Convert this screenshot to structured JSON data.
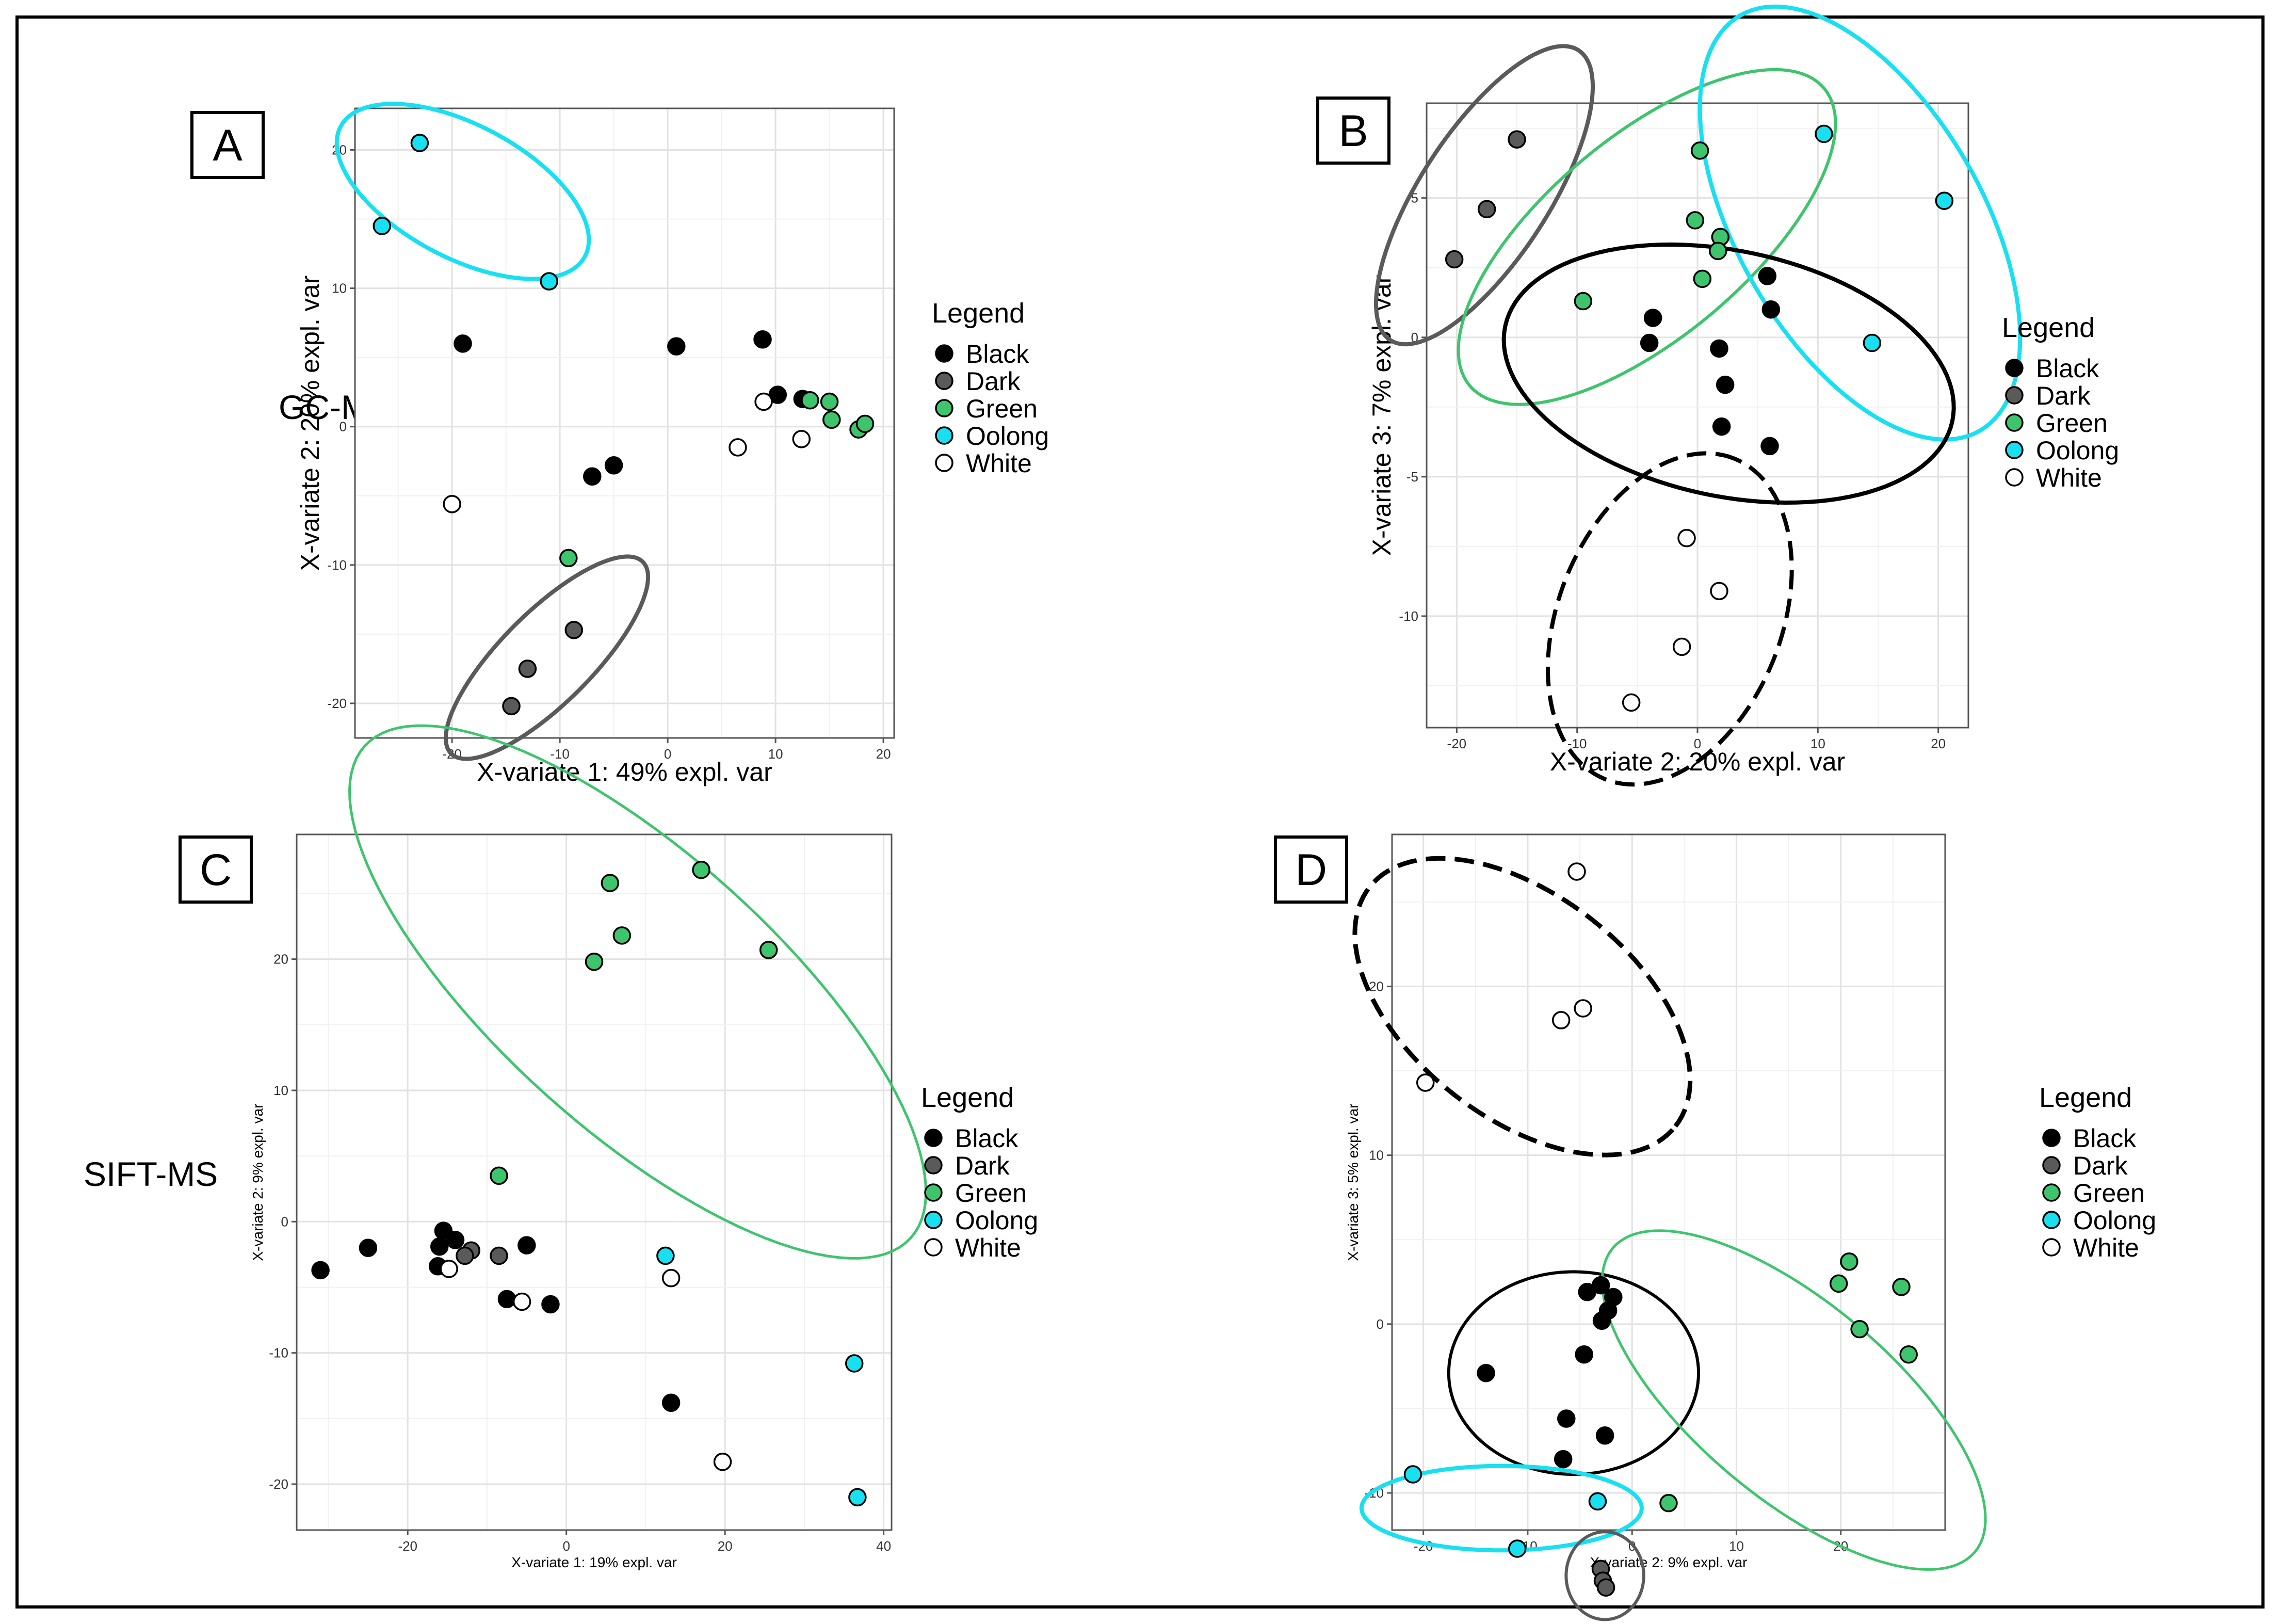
{
  "technique_labels": {
    "top": "GC-MS",
    "bottom": "SIFT-MS"
  },
  "legend": {
    "title": "Legend",
    "items": [
      {
        "label": "Black",
        "color": "#000000"
      },
      {
        "label": "Dark",
        "color": "#5a5a5a"
      },
      {
        "label": "Green",
        "color": "#3ec46d"
      },
      {
        "label": "Oolong",
        "color": "#18e0f0"
      },
      {
        "label": "White",
        "color": "#ffffff"
      }
    ]
  },
  "chart_data": [
    {
      "panel": "A",
      "type": "scatter",
      "xlabel": "X-variate 1: 49% expl. var",
      "ylabel": "X-variate 2: 20% expl. var",
      "xlim": [
        -29,
        21
      ],
      "ylim": [
        -22.5,
        23
      ],
      "xticks": [
        -20,
        -10,
        0,
        10,
        20
      ],
      "yticks": [
        -20,
        -10,
        0,
        10,
        20
      ],
      "grid": true,
      "legend_position": "right",
      "series": [
        {
          "name": "Black",
          "points": [
            [
              -19,
              6
            ],
            [
              0.8,
              5.8
            ],
            [
              8.8,
              6.3
            ],
            [
              10.2,
              2.3
            ],
            [
              12.5,
              2
            ],
            [
              -7,
              -3.6
            ],
            [
              -5,
              -2.8
            ]
          ]
        },
        {
          "name": "Dark",
          "points": [
            [
              -8.7,
              -14.7
            ],
            [
              -13,
              -17.5
            ],
            [
              -14.5,
              -20.2
            ]
          ]
        },
        {
          "name": "Green",
          "points": [
            [
              13.2,
              1.9
            ],
            [
              15,
              1.8
            ],
            [
              15.2,
              0.5
            ],
            [
              17.7,
              -0.2
            ],
            [
              18.3,
              0.2
            ],
            [
              -9.2,
              -9.5
            ]
          ]
        },
        {
          "name": "Oolong",
          "points": [
            [
              -23,
              20.5
            ],
            [
              -26.5,
              14.5
            ],
            [
              -11,
              10.5
            ]
          ]
        },
        {
          "name": "White",
          "points": [
            [
              8.9,
              1.8
            ],
            [
              6.5,
              -1.5
            ],
            [
              12.4,
              -0.9
            ],
            [
              -20,
              -5.6
            ]
          ]
        }
      ],
      "ellipses": [
        {
          "group": "Oolong",
          "style": "solid"
        },
        {
          "group": "Dark",
          "style": "solid"
        }
      ]
    },
    {
      "panel": "B",
      "type": "scatter",
      "xlabel": "X-variate 2: 20% expl. var",
      "ylabel": "X-variate 3: 7% expl. var",
      "xlim": [
        -22.5,
        22.5
      ],
      "ylim": [
        -14,
        8.4
      ],
      "xticks": [
        -20,
        -10,
        0,
        10,
        20
      ],
      "yticks": [
        -10,
        -5,
        0,
        5
      ],
      "grid": true,
      "legend_position": "right",
      "series": [
        {
          "name": "Black",
          "points": [
            [
              5.8,
              2.2
            ],
            [
              6.1,
              1
            ],
            [
              -3.7,
              0.7
            ],
            [
              -4,
              -0.2
            ],
            [
              1.8,
              -0.4
            ],
            [
              2.3,
              -1.7
            ],
            [
              2,
              -3.2
            ],
            [
              6,
              -3.9
            ]
          ]
        },
        {
          "name": "Dark",
          "points": [
            [
              -15,
              7.1
            ],
            [
              -17.5,
              4.6
            ],
            [
              -20.2,
              2.8
            ]
          ]
        },
        {
          "name": "Green",
          "points": [
            [
              0.2,
              6.7
            ],
            [
              -0.2,
              4.2
            ],
            [
              1.9,
              3.6
            ],
            [
              1.7,
              3.1
            ],
            [
              0.4,
              2.1
            ],
            [
              -9.5,
              1.3
            ]
          ]
        },
        {
          "name": "Oolong",
          "points": [
            [
              10.5,
              7.3
            ],
            [
              20.5,
              4.9
            ],
            [
              14.5,
              -0.2
            ]
          ]
        },
        {
          "name": "White",
          "points": [
            [
              -0.9,
              -7.2
            ],
            [
              1.8,
              -9.1
            ],
            [
              -1.3,
              -11.1
            ],
            [
              -5.5,
              -13.1
            ]
          ]
        }
      ],
      "ellipses": [
        {
          "group": "Dark",
          "style": "solid"
        },
        {
          "group": "Green",
          "style": "solid"
        },
        {
          "group": "Oolong",
          "style": "solid"
        },
        {
          "group": "Black",
          "style": "solid"
        },
        {
          "group": "White",
          "style": "dashed"
        }
      ]
    },
    {
      "panel": "C",
      "type": "scatter",
      "xlabel": "X-variate 1: 19% expl. var",
      "ylabel": "X-variate 2: 9% expl. var",
      "xlim": [
        -34,
        41
      ],
      "ylim": [
        -23.5,
        29.5
      ],
      "xticks": [
        -20,
        0,
        20,
        40
      ],
      "yticks": [
        -20,
        -10,
        0,
        10,
        20
      ],
      "grid": true,
      "legend_position": "right",
      "series": [
        {
          "name": "Black",
          "points": [
            [
              -31,
              -3.7
            ],
            [
              -25,
              -2
            ],
            [
              -15.5,
              -0.7
            ],
            [
              -16,
              -1.9
            ],
            [
              -14,
              -1.4
            ],
            [
              -16.2,
              -3.4
            ],
            [
              -5,
              -1.8
            ],
            [
              -7.5,
              -5.9
            ],
            [
              -2,
              -6.3
            ],
            [
              13.2,
              -13.8
            ]
          ]
        },
        {
          "name": "Dark",
          "points": [
            [
              -12,
              -2.2
            ],
            [
              -12.8,
              -2.6
            ],
            [
              -8.5,
              -2.6
            ]
          ]
        },
        {
          "name": "Green",
          "points": [
            [
              5.5,
              25.8
            ],
            [
              17,
              26.8
            ],
            [
              7,
              21.8
            ],
            [
              3.5,
              19.8
            ],
            [
              25.5,
              20.7
            ],
            [
              -8.5,
              3.5
            ]
          ]
        },
        {
          "name": "Oolong",
          "points": [
            [
              12.5,
              -2.6
            ],
            [
              36.3,
              -10.8
            ],
            [
              36.7,
              -21
            ]
          ]
        },
        {
          "name": "White",
          "points": [
            [
              -14.8,
              -3.6
            ],
            [
              -5.6,
              -6.1
            ],
            [
              13.2,
              -4.3
            ],
            [
              19.7,
              -18.3
            ]
          ]
        }
      ],
      "ellipses": [
        {
          "group": "Green",
          "style": "solid"
        }
      ]
    },
    {
      "panel": "D",
      "type": "scatter",
      "xlabel": "X-variate 2: 9% expl. var",
      "ylabel": "X-variate 3: 5% expl. var",
      "xlim": [
        -23,
        30
      ],
      "ylim": [
        -12.2,
        29
      ],
      "xticks": [
        -20,
        -10,
        0,
        10,
        20
      ],
      "yticks": [
        -10,
        0,
        10,
        20
      ],
      "grid": true,
      "legend_position": "right",
      "series": [
        {
          "name": "Black",
          "points": [
            [
              -3,
              2.3
            ],
            [
              -4.3,
              1.9
            ],
            [
              -1.8,
              1.6
            ],
            [
              -2.3,
              0.8
            ],
            [
              -2.9,
              0.2
            ],
            [
              -4.6,
              -1.8
            ],
            [
              -14,
              -2.9
            ],
            [
              -6.3,
              -5.6
            ],
            [
              -2.6,
              -6.6
            ],
            [
              -6.6,
              -8
            ]
          ]
        },
        {
          "name": "Dark",
          "points": [
            [
              -3,
              -14.5
            ],
            [
              -2.8,
              -15.2
            ],
            [
              -2.5,
              -15.6
            ]
          ]
        },
        {
          "name": "Green",
          "points": [
            [
              20.8,
              3.7
            ],
            [
              19.8,
              2.4
            ],
            [
              25.8,
              2.2
            ],
            [
              21.8,
              -0.3
            ],
            [
              26.5,
              -1.8
            ],
            [
              3.5,
              -10.6
            ]
          ]
        },
        {
          "name": "Oolong",
          "points": [
            [
              -21,
              -8.9
            ],
            [
              -3.3,
              -10.5
            ],
            [
              -11,
              -13.3
            ]
          ]
        },
        {
          "name": "White",
          "points": [
            [
              -5.3,
              26.8
            ],
            [
              -6.8,
              18
            ],
            [
              -4.7,
              18.7
            ],
            [
              -19.8,
              14.3
            ]
          ]
        }
      ],
      "ellipses": [
        {
          "group": "White",
          "style": "dashed"
        },
        {
          "group": "Black",
          "style": "solid"
        },
        {
          "group": "Green",
          "style": "solid"
        },
        {
          "group": "Oolong",
          "style": "solid"
        },
        {
          "group": "Dark",
          "style": "solid"
        }
      ]
    }
  ]
}
